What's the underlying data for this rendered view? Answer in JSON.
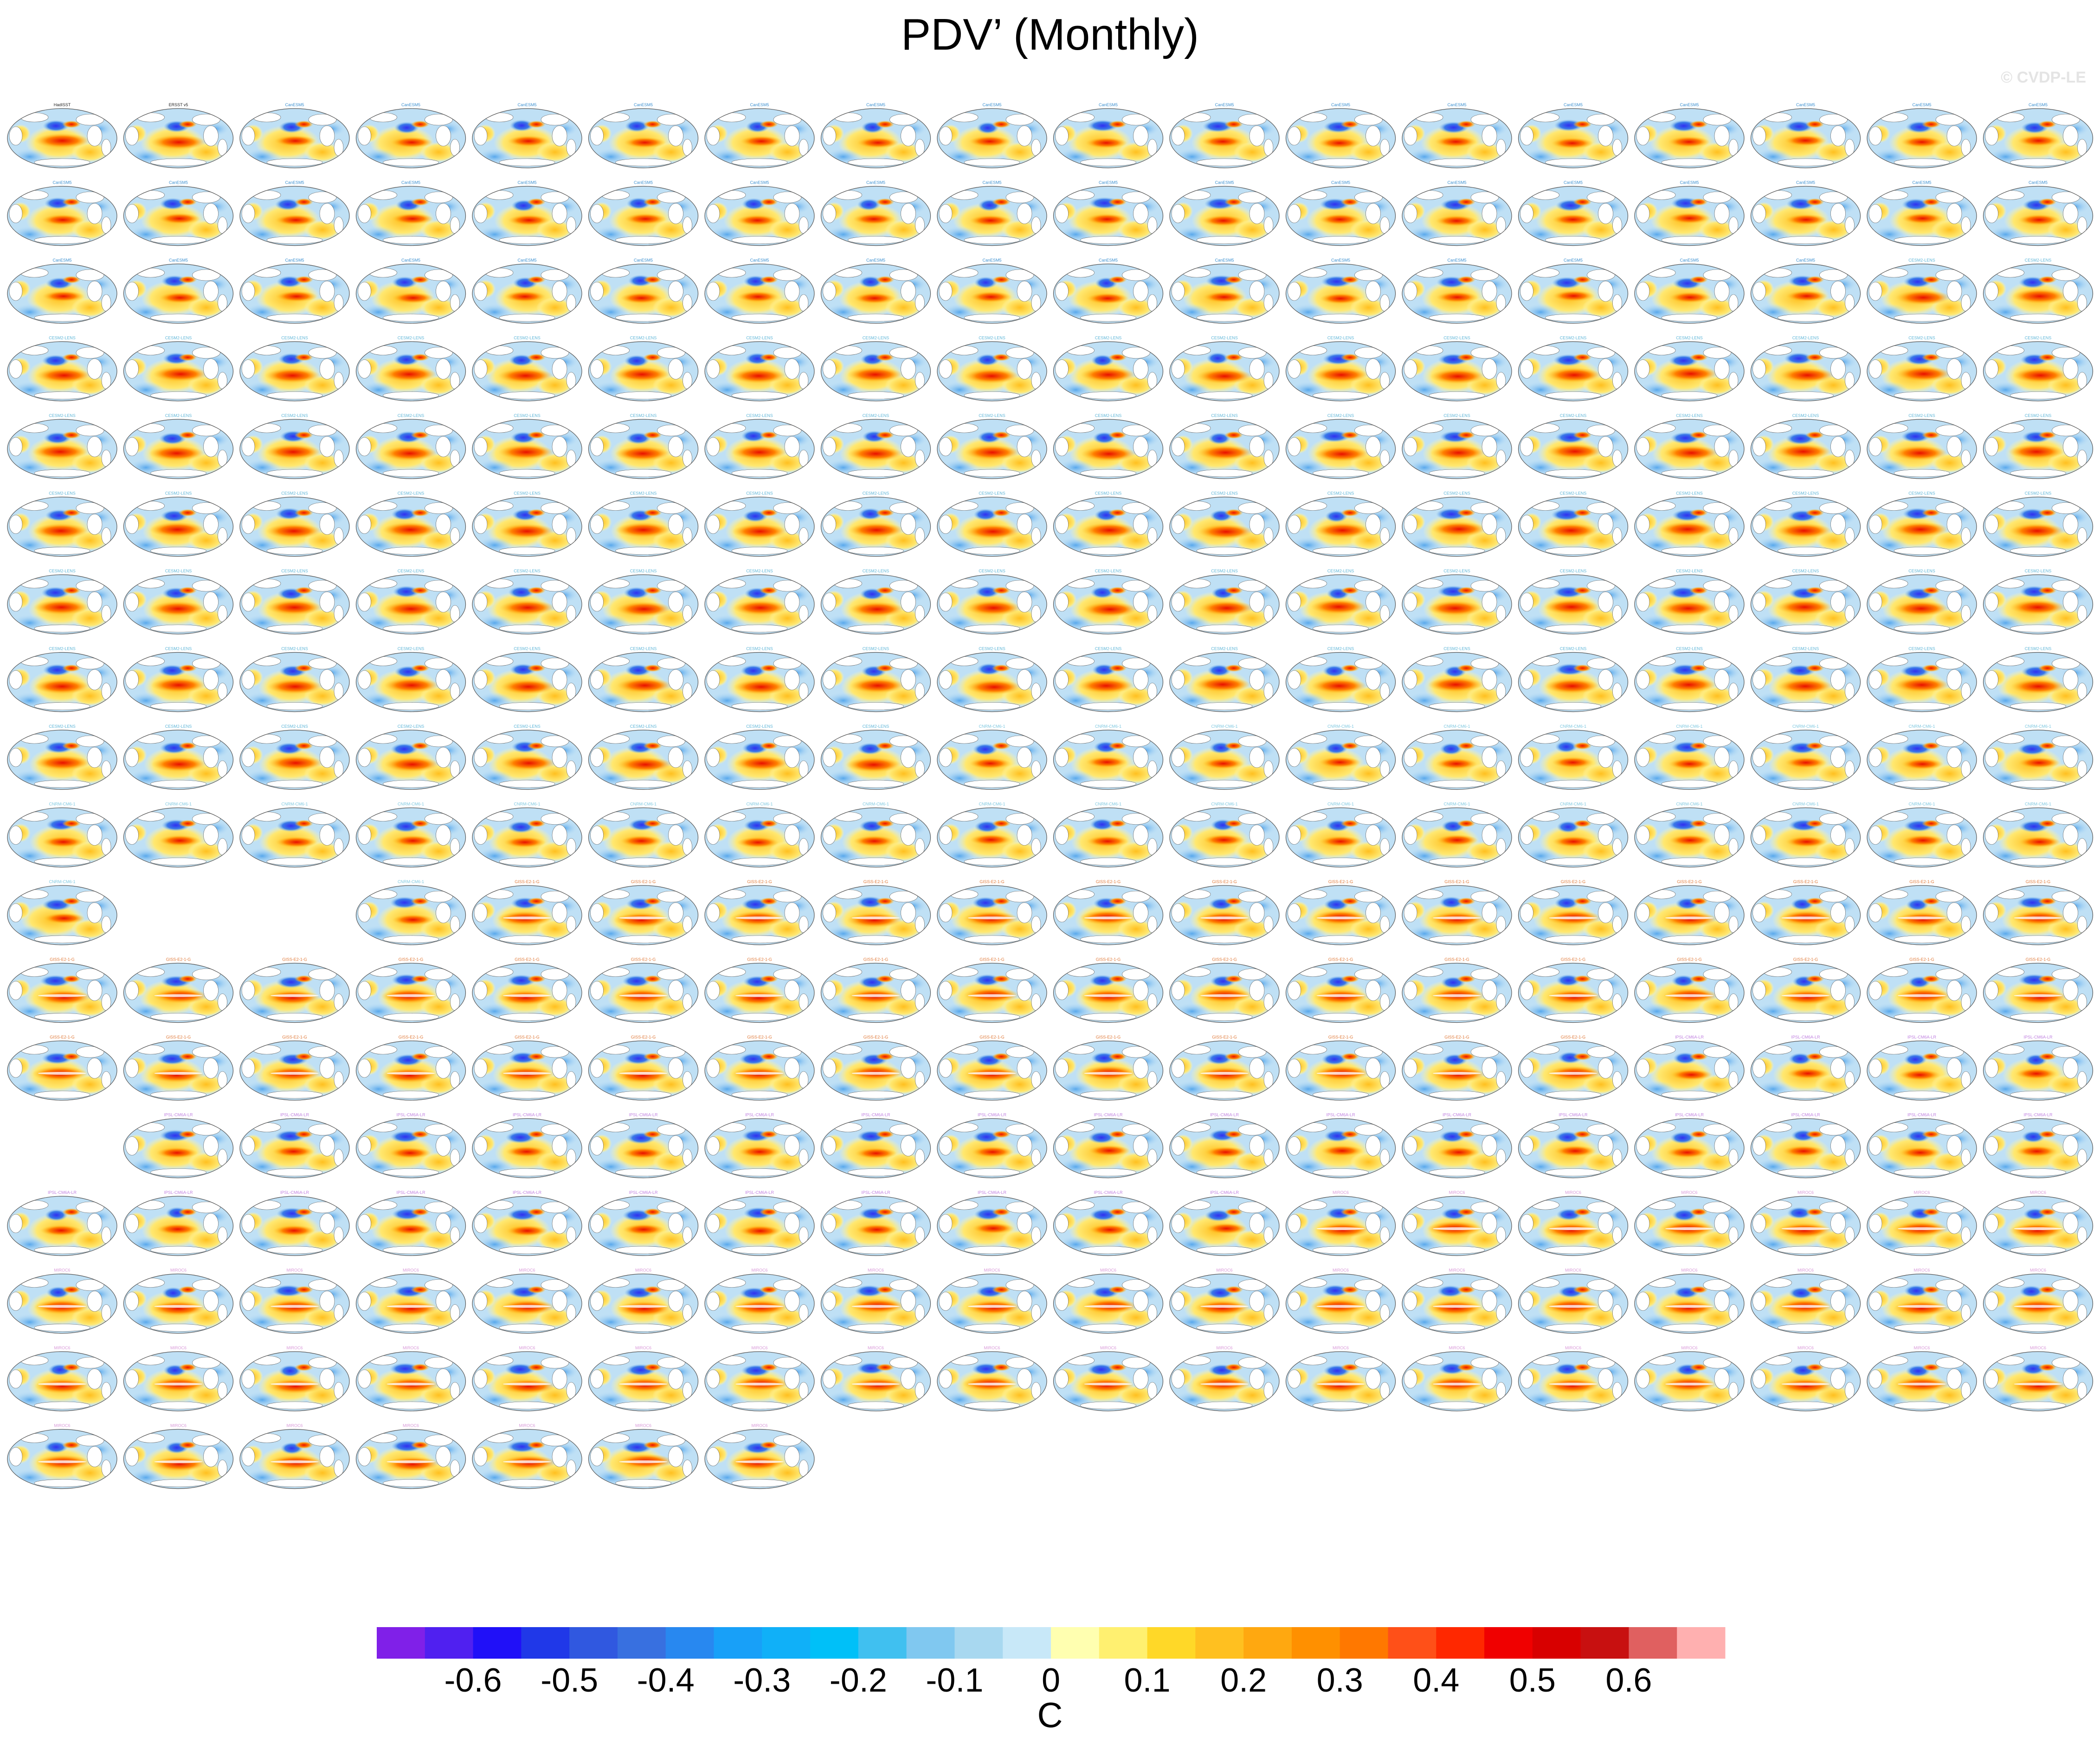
{
  "title": "PDV’ (Monthly)",
  "watermark": "© CVDP-LE",
  "chart_data": {
    "type": "heatmap",
    "description_of_layout": "grid of global sea-surface-temperature regression maps, 18 per row",
    "observations": [
      "HadISST",
      "ERSST v5"
    ],
    "model_groups": [
      {
        "name": "CanESM5",
        "label_color": "#3a8fd0",
        "members": 50
      },
      {
        "name": "CESM2-LENS",
        "label_color": "#5fb6d8",
        "members": 100
      },
      {
        "name": "CNRM-CM6-1",
        "label_color": "#7fc8e0",
        "members": 30
      },
      {
        "name": "GISS-E2-1-G",
        "label_color": "#e07a3a",
        "members": 46
      },
      {
        "name": "IPSL-CM6A-LR",
        "label_color": "#c080e0",
        "members": 32
      },
      {
        "name": "MIROC6",
        "label_color": "#d99ad9",
        "members": 50
      }
    ],
    "colorbar": {
      "ticks": [
        -0.6,
        -0.5,
        -0.4,
        -0.3,
        -0.2,
        -0.1,
        0,
        0.1,
        0.2,
        0.3,
        0.4,
        0.5,
        0.6
      ],
      "tick_labels": [
        "-0.6",
        "-0.5",
        "-0.4",
        "-0.3",
        "-0.2",
        "-0.1",
        "0",
        "0.1",
        "0.2",
        "0.3",
        "0.4",
        "0.5",
        "0.6"
      ],
      "colors": [
        "#8020e8",
        "#5020f0",
        "#2010f8",
        "#2038e8",
        "#3058e0",
        "#3870e0",
        "#2888f0",
        "#18a0f8",
        "#10b0f8",
        "#00c0f8",
        "#40c0f0",
        "#80c8f0",
        "#a8d8f0",
        "#c8e8f8",
        "#ffffb0",
        "#fff070",
        "#ffd828",
        "#ffc020",
        "#ffa810",
        "#ff9000",
        "#ff7800",
        "#ff5018",
        "#ff2800",
        "#f00000",
        "#d80000",
        "#c81010",
        "#e06060",
        "#ffb0b0"
      ],
      "units": "C"
    }
  }
}
